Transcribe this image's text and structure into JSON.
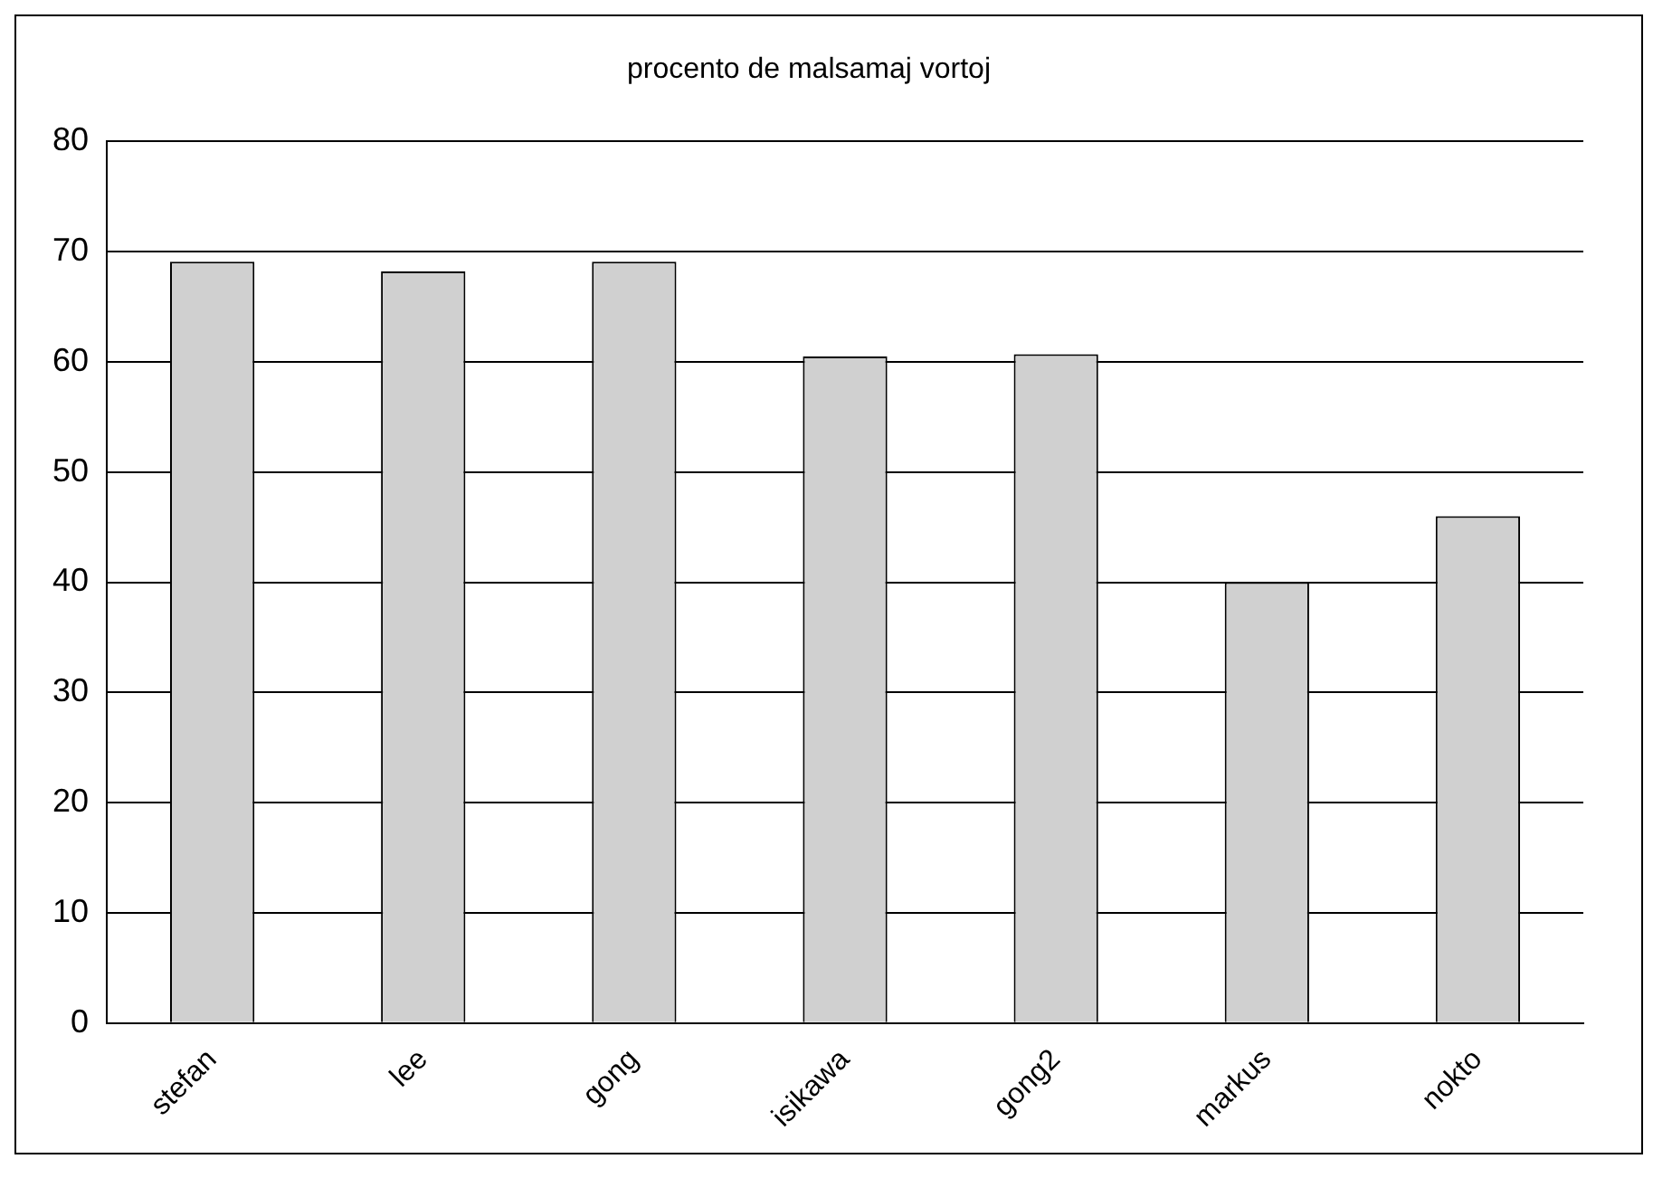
{
  "chart_data": {
    "type": "bar",
    "title": "procento de malsamaj vortoj",
    "categories": [
      "stefan",
      "lee",
      "gong",
      "isikawa",
      "gong2",
      "markus",
      "nokto"
    ],
    "values": [
      69.1,
      68.2,
      69.1,
      60.5,
      60.7,
      40,
      46
    ],
    "color": "#d0d0d0",
    "ylim": [
      0,
      80
    ],
    "yticks": [
      0,
      10,
      20,
      30,
      40,
      50,
      60,
      70,
      80
    ],
    "grid": "y",
    "legend": false
  }
}
